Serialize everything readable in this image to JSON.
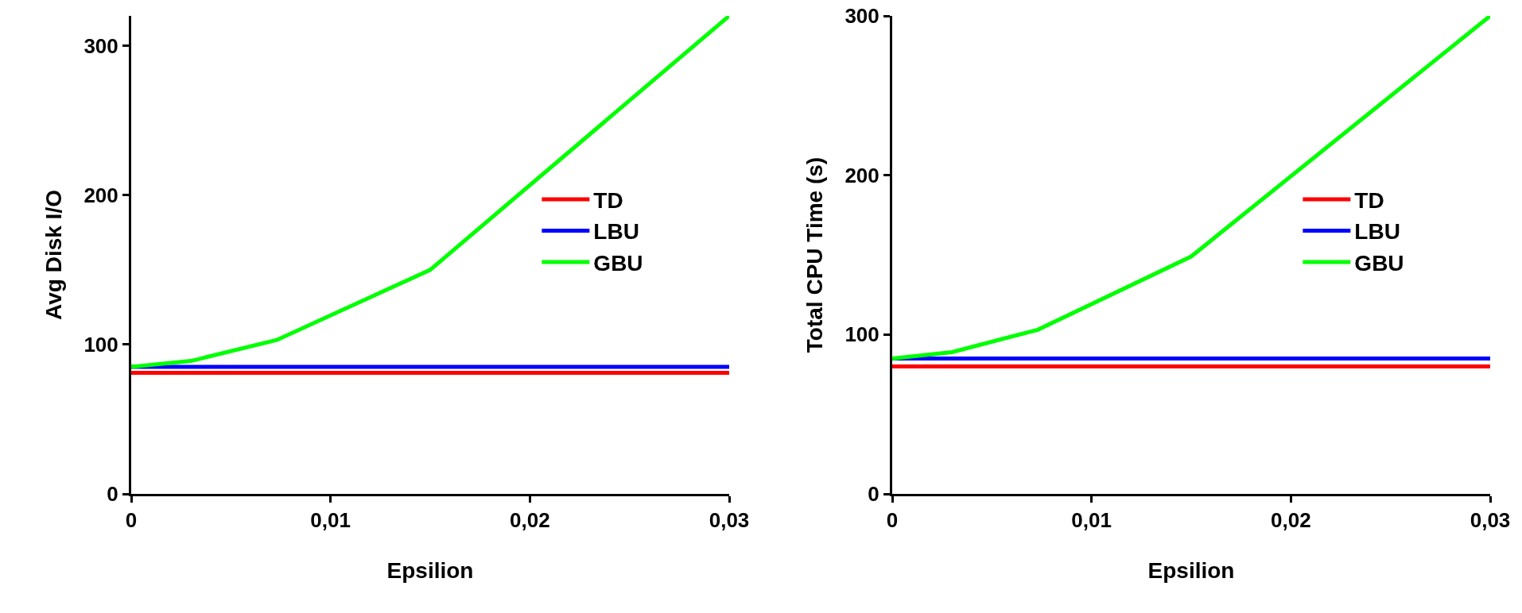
{
  "chart_data": [
    {
      "type": "line",
      "xlabel": "Epsilion",
      "ylabel": "Avg Disk I/O",
      "x": [
        0,
        0.003,
        0.0073,
        0.015,
        0.03
      ],
      "series": [
        {
          "name": "TD",
          "color": "#ff0000",
          "values": [
            81,
            81,
            81,
            81,
            81
          ]
        },
        {
          "name": "LBU",
          "color": "#0000ff",
          "values": [
            85,
            85,
            85,
            85,
            85
          ]
        },
        {
          "name": "GBU",
          "color": "#00ff00",
          "values": [
            85,
            89,
            103,
            150,
            320
          ]
        }
      ],
      "xlim": [
        0,
        0.03
      ],
      "xticks": [
        0,
        {
          "value": 0.01,
          "label": "0,01"
        },
        {
          "value": 0.02,
          "label": "0,02"
        },
        {
          "value": 0.03,
          "label": "0,03"
        }
      ],
      "ylim": [
        0,
        320
      ],
      "yticks": [
        0,
        100,
        200,
        300
      ],
      "grid": false,
      "legend": "right",
      "marker": "none",
      "line_style": "solid"
    },
    {
      "type": "line",
      "xlabel": "Epsilion",
      "ylabel": "Total CPU Time (s)",
      "x": [
        0,
        0.003,
        0.0073,
        0.015,
        0.03
      ],
      "series": [
        {
          "name": "TD",
          "color": "#ff0000",
          "values": [
            80,
            80,
            80,
            80,
            80
          ]
        },
        {
          "name": "LBU",
          "color": "#0000ff",
          "values": [
            85,
            85,
            85,
            85,
            85
          ]
        },
        {
          "name": "GBU",
          "color": "#00ff00",
          "values": [
            85,
            89,
            103,
            149,
            300
          ]
        }
      ],
      "xlim": [
        0,
        0.03
      ],
      "xticks": [
        0,
        {
          "value": 0.01,
          "label": "0,01"
        },
        {
          "value": 0.02,
          "label": "0,02"
        },
        {
          "value": 0.03,
          "label": "0,03"
        }
      ],
      "ylim": [
        0,
        300
      ],
      "yticks": [
        0,
        100,
        200,
        300
      ],
      "grid": false,
      "legend": "right",
      "marker": "none",
      "line_style": "solid"
    }
  ]
}
